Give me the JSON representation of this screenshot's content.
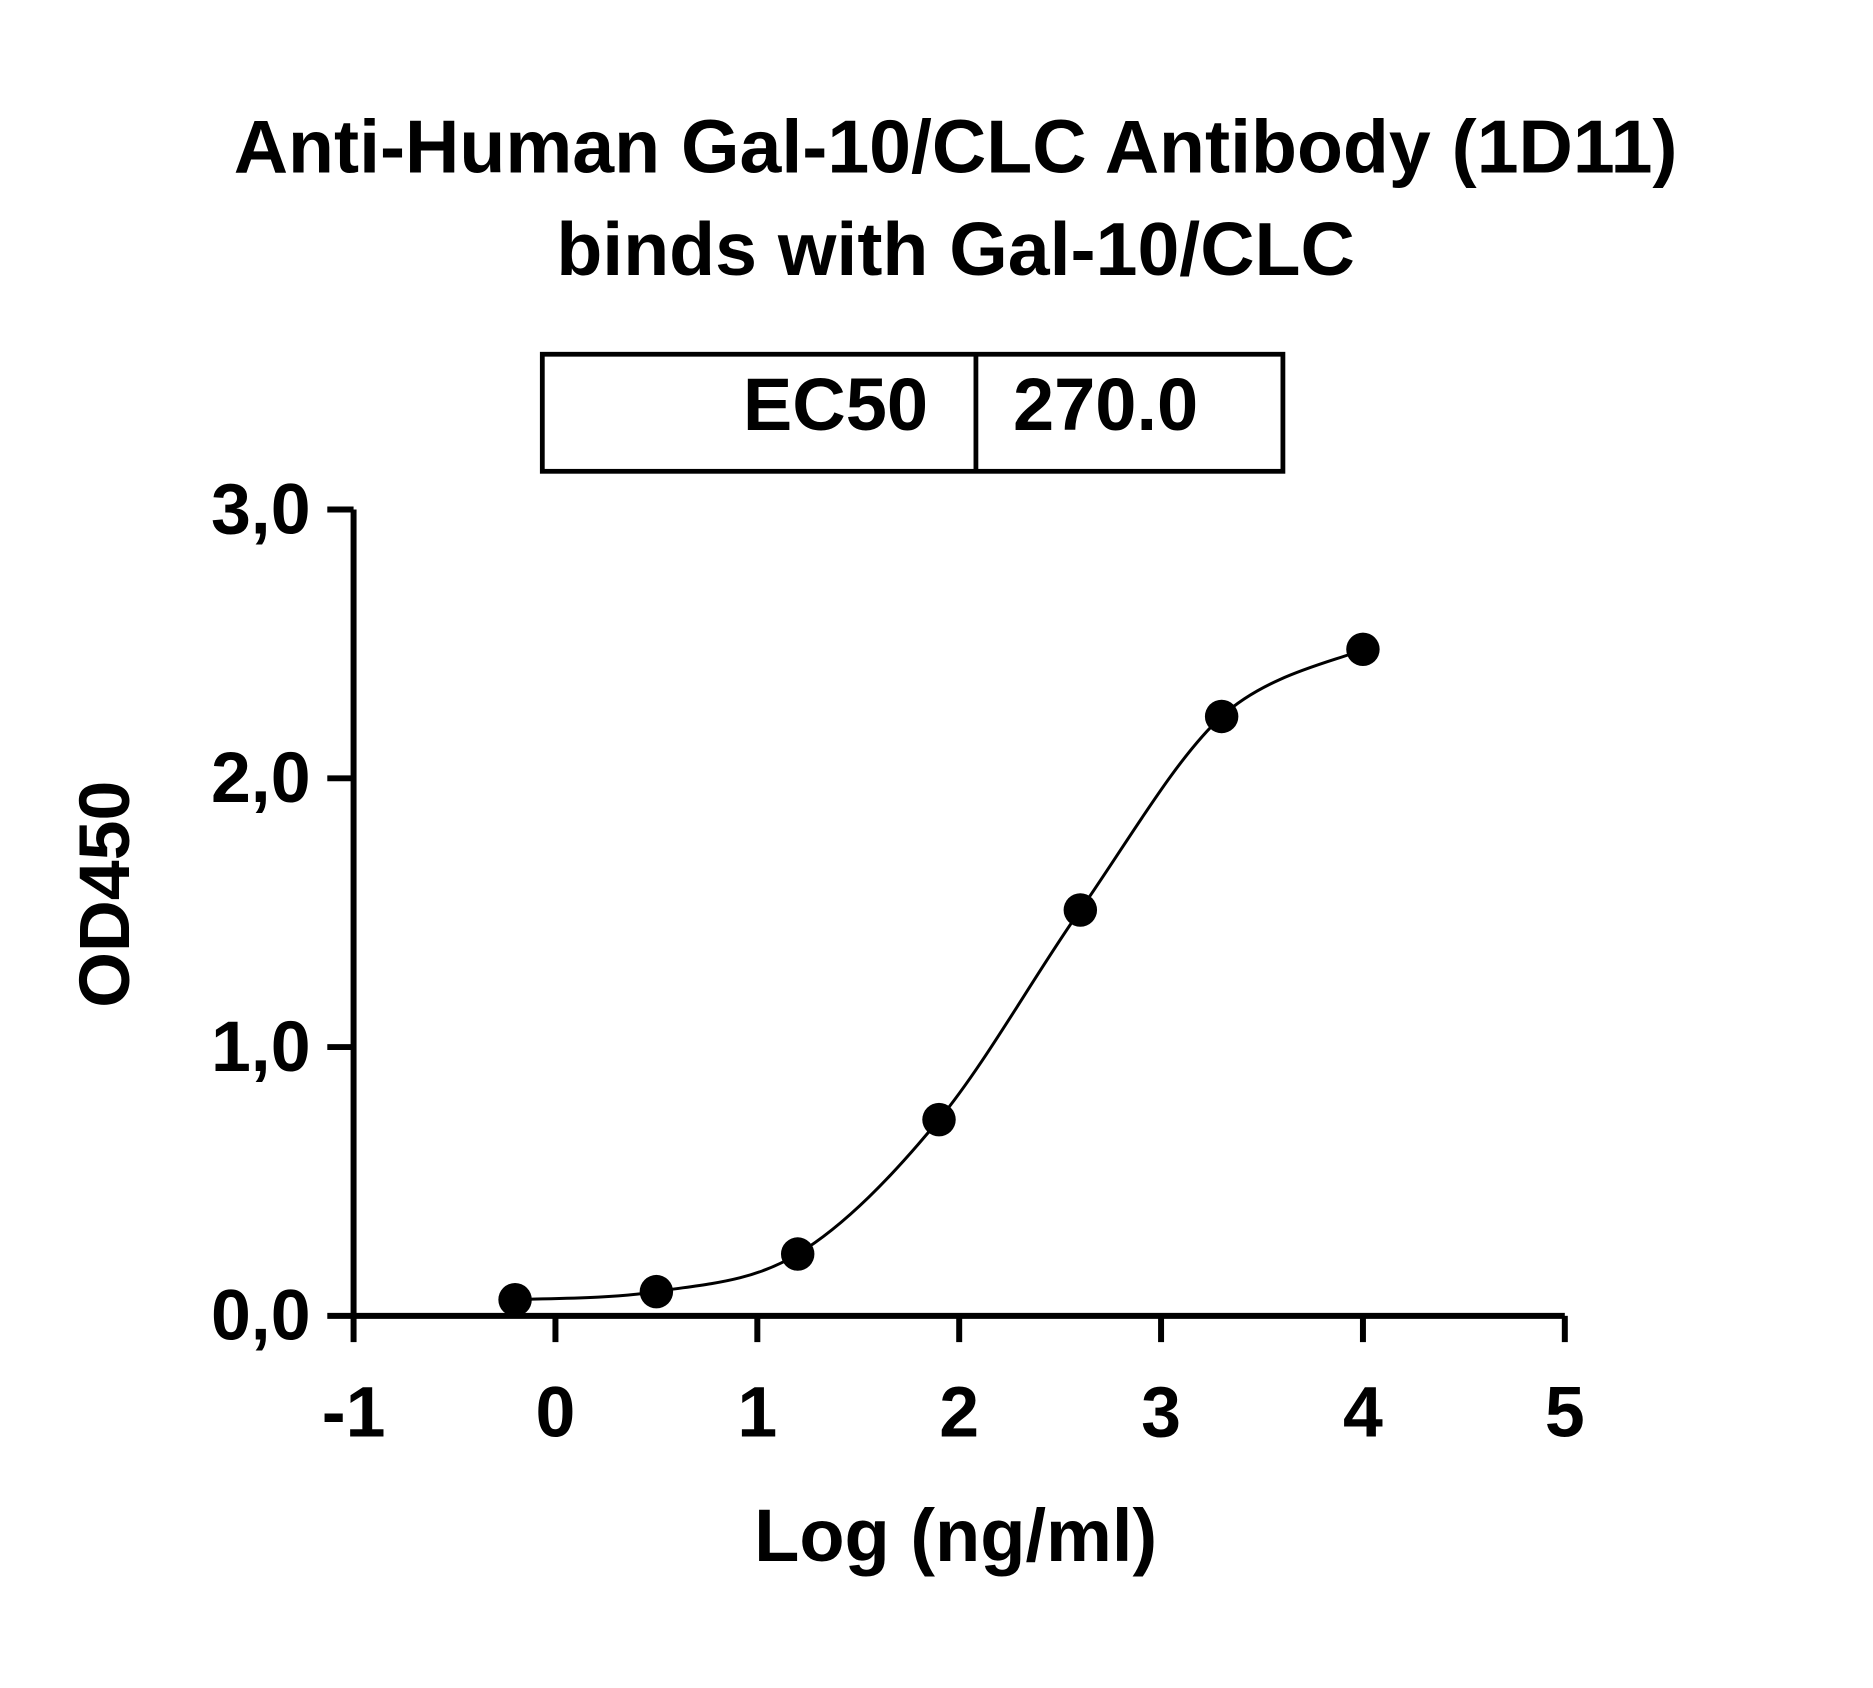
{
  "chart_data": {
    "type": "scatter",
    "title": [
      "Anti-Human Gal-10/CLC Antibody (1D11)",
      "binds with Gal-10/CLC"
    ],
    "annotation": {
      "label": "EC50",
      "value": "270.0"
    },
    "xlabel": "Log (ng/ml)",
    "ylabel": "OD450",
    "series": [
      {
        "color": "#000000",
        "x": [
          -0.2,
          0.5,
          1.2,
          1.9,
          2.6,
          3.3,
          4.0
        ],
        "values": [
          0.06,
          0.09,
          0.23,
          0.73,
          1.51,
          2.23,
          2.48
        ]
      }
    ],
    "xlim": [
      -1,
      5
    ],
    "xticks": [
      -1,
      0,
      1,
      2,
      3,
      4,
      5
    ],
    "ylim": [
      0,
      3
    ],
    "yticks": [
      {
        "value": 0,
        "label": "0,0"
      },
      {
        "value": 1,
        "label": "1,0"
      },
      {
        "value": 2,
        "label": "2,0"
      },
      {
        "value": 3,
        "label": "3,0"
      }
    ],
    "grid": false
  }
}
